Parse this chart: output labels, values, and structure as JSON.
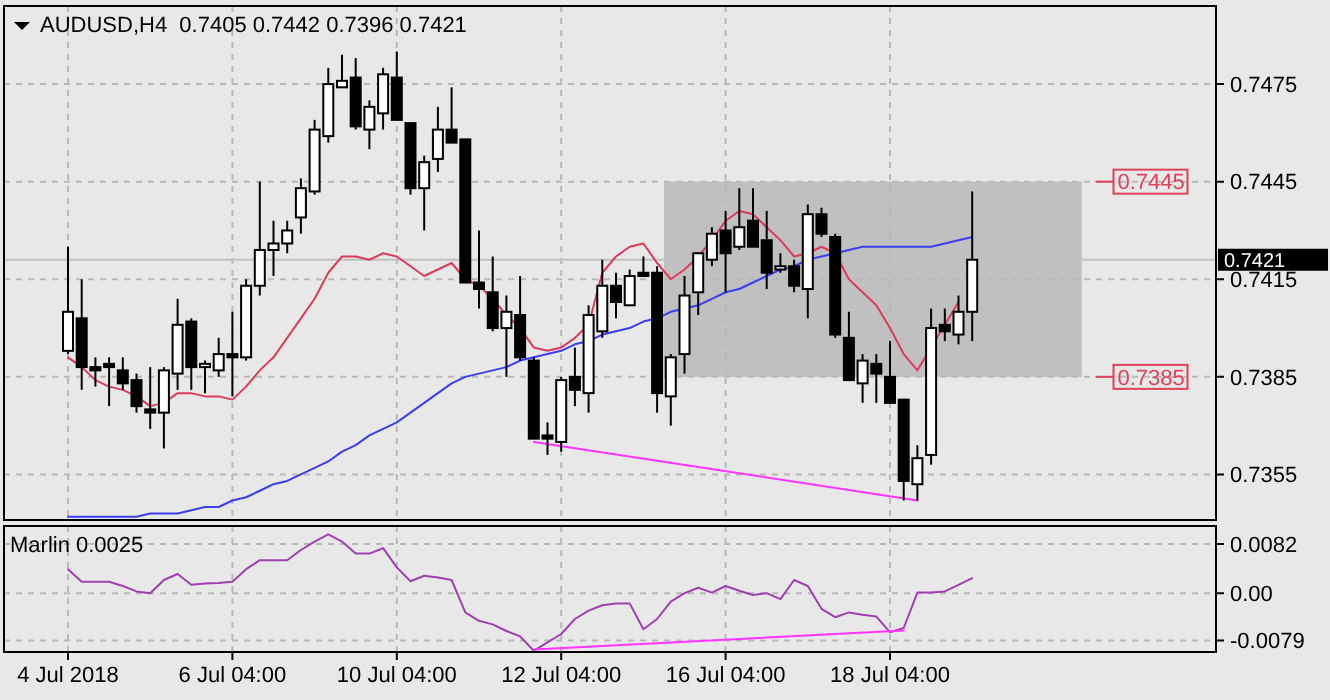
{
  "chart_data": [
    {
      "type": "candlestick",
      "title": "AUDUSD,H4  0.7405 0.7442 0.7396 0.7421",
      "categories": [
        null,
        null,
        null,
        null,
        null,
        null,
        null,
        null,
        null,
        null,
        null,
        null,
        null,
        null,
        null,
        null,
        null,
        null,
        null,
        null,
        null,
        null,
        null,
        null,
        null,
        null,
        null,
        null,
        null,
        null,
        null,
        null,
        null,
        null,
        null,
        null,
        null,
        null,
        null,
        null,
        null,
        null,
        null,
        null,
        null,
        null,
        null,
        null,
        null,
        null,
        null,
        null,
        null,
        null,
        null,
        null,
        null,
        null,
        null,
        null,
        null,
        null,
        null,
        null,
        null,
        null,
        null
      ],
      "ohlc": [
        [
          0.7393,
          0.7425,
          0.7392,
          0.7405
        ],
        [
          0.7403,
          0.7415,
          0.7381,
          0.7388
        ],
        [
          0.7388,
          0.7391,
          0.7382,
          0.7387
        ],
        [
          0.7389,
          0.7391,
          0.7376,
          0.7388
        ],
        [
          0.7387,
          0.7391,
          0.7381,
          0.7383
        ],
        [
          0.7384,
          0.7386,
          0.7374,
          0.7376
        ],
        [
          0.7375,
          0.7388,
          0.7369,
          0.7374
        ],
        [
          0.7374,
          0.7388,
          0.7363,
          0.7387
        ],
        [
          0.7386,
          0.7409,
          0.7381,
          0.7401
        ],
        [
          0.7402,
          0.7403,
          0.7381,
          0.7388
        ],
        [
          0.7388,
          0.739,
          0.738,
          0.7389
        ],
        [
          0.7387,
          0.7397,
          0.7385,
          0.7392
        ],
        [
          0.7392,
          0.7405,
          0.7379,
          0.7391
        ],
        [
          0.7391,
          0.7415,
          0.739,
          0.7413
        ],
        [
          0.7413,
          0.7445,
          0.741,
          0.7424
        ],
        [
          0.7424,
          0.7433,
          0.7416,
          0.7426
        ],
        [
          0.7426,
          0.7433,
          0.7423,
          0.743
        ],
        [
          0.7434,
          0.7446,
          0.7429,
          0.7443
        ],
        [
          0.7442,
          0.7464,
          0.7441,
          0.7461
        ],
        [
          0.7459,
          0.748,
          0.7457,
          0.7475
        ],
        [
          0.7474,
          0.7484,
          0.7474,
          0.7476
        ],
        [
          0.7477,
          0.7483,
          0.7461,
          0.7462
        ],
        [
          0.7461,
          0.747,
          0.7455,
          0.7468
        ],
        [
          0.7466,
          0.748,
          0.7461,
          0.7478
        ],
        [
          0.7477,
          0.7485,
          0.7464,
          0.7464
        ],
        [
          0.7463,
          0.7463,
          0.7441,
          0.7443
        ],
        [
          0.7443,
          0.7453,
          0.743,
          0.7451
        ],
        [
          0.7452,
          0.7468,
          0.7448,
          0.7461
        ],
        [
          0.7461,
          0.7474,
          0.7457,
          0.7457
        ],
        [
          0.7458,
          0.7458,
          0.7414,
          0.7414
        ],
        [
          0.7414,
          0.743,
          0.7406,
          0.7412
        ],
        [
          0.7411,
          0.7422,
          0.7399,
          0.74
        ],
        [
          0.74,
          0.741,
          0.7385,
          0.7405
        ],
        [
          0.7404,
          0.7416,
          0.739,
          0.7391
        ],
        [
          0.739,
          0.7391,
          0.7366,
          0.7366
        ],
        [
          0.7367,
          0.7371,
          0.7361,
          0.7366
        ],
        [
          0.7365,
          0.7385,
          0.7362,
          0.7384
        ],
        [
          0.7385,
          0.7394,
          0.7376,
          0.7381
        ],
        [
          0.738,
          0.7407,
          0.7374,
          0.7404
        ],
        [
          0.7399,
          0.7421,
          0.7397,
          0.7413
        ],
        [
          0.7413,
          0.7417,
          0.7403,
          0.7408
        ],
        [
          0.7407,
          0.7418,
          0.7407,
          0.7416
        ],
        [
          0.7417,
          0.7422,
          0.7416,
          0.7416
        ],
        [
          0.7417,
          0.7419,
          0.7374,
          0.738
        ],
        [
          0.7379,
          0.7392,
          0.737,
          0.7391
        ],
        [
          0.7392,
          0.7416,
          0.7386,
          0.741
        ],
        [
          0.7411,
          0.7423,
          0.7404,
          0.7423
        ],
        [
          0.7421,
          0.7431,
          0.7419,
          0.7429
        ],
        [
          0.743,
          0.7436,
          0.7411,
          0.7423
        ],
        [
          0.7425,
          0.7443,
          0.7424,
          0.7431
        ],
        [
          0.7433,
          0.7443,
          0.7425,
          0.7425
        ],
        [
          0.7427,
          0.7436,
          0.7412,
          0.7417
        ],
        [
          0.7418,
          0.7423,
          0.7417,
          0.7419
        ],
        [
          0.7419,
          0.7421,
          0.7411,
          0.7413
        ],
        [
          0.7412,
          0.7438,
          0.7403,
          0.7435
        ],
        [
          0.7435,
          0.7437,
          0.7428,
          0.7429
        ],
        [
          0.7428,
          0.7429,
          0.7397,
          0.7398
        ],
        [
          0.7397,
          0.7405,
          0.7384,
          0.7384
        ],
        [
          0.7383,
          0.7392,
          0.7377,
          0.739
        ],
        [
          0.7389,
          0.7392,
          0.7377,
          0.7386
        ],
        [
          0.7385,
          0.7396,
          0.7377,
          0.7377
        ],
        [
          0.7378,
          0.7378,
          0.7347,
          0.7353
        ],
        [
          0.7352,
          0.7364,
          0.7347,
          0.736
        ],
        [
          0.7361,
          0.7406,
          0.7358,
          0.74
        ],
        [
          0.7401,
          0.7406,
          0.7396,
          0.7399
        ],
        [
          0.7398,
          0.741,
          0.7395,
          0.7405
        ],
        [
          0.7405,
          0.7442,
          0.7396,
          0.7421
        ]
      ],
      "series": [
        {
          "type": "line",
          "color": "#dc3c5a",
          "values": [
            0.7391,
            0.7388,
            0.7384,
            0.7382,
            0.7381,
            0.7379,
            0.7376,
            0.7377,
            0.738,
            0.738,
            0.7379,
            0.7379,
            0.7378,
            0.7382,
            0.7387,
            0.7391,
            0.7397,
            0.7403,
            0.7409,
            0.7417,
            0.7422,
            0.7422,
            0.7421,
            0.7423,
            0.7422,
            0.7419,
            0.7416,
            0.7418,
            0.742,
            0.7415,
            0.7413,
            0.7409,
            0.7404,
            0.74,
            0.7394,
            0.7393,
            0.7394,
            0.7397,
            0.7401,
            0.7417,
            0.7422,
            0.7425,
            0.7426,
            0.742,
            0.7415,
            0.7418,
            0.7422,
            0.7427,
            0.7433,
            0.7436,
            0.7435,
            0.7431,
            0.7427,
            0.7422,
            0.7423,
            0.7425,
            0.7423,
            0.7415,
            0.7411,
            0.7407,
            0.74,
            0.7392,
            0.7387,
            null,
            0.7401,
            0.7408,
            null
          ]
        },
        {
          "type": "line",
          "color": "#3c3cf0",
          "values": [
            0.7342,
            0.7342,
            0.7342,
            0.7342,
            0.7342,
            0.7342,
            0.7343,
            0.7343,
            0.7343,
            0.7344,
            0.7345,
            0.7345,
            0.7347,
            0.7348,
            0.735,
            0.7352,
            0.7353,
            0.7355,
            0.7357,
            0.7359,
            0.7362,
            0.7364,
            0.7367,
            0.7369,
            0.7371,
            0.7374,
            0.7377,
            0.738,
            0.7383,
            0.7385,
            0.7386,
            0.7387,
            0.7388,
            0.739,
            0.7391,
            0.7392,
            0.7393,
            0.7395,
            0.7396,
            0.7398,
            0.7399,
            0.74,
            0.7402,
            0.7403,
            0.7405,
            0.7406,
            0.7407,
            0.7409,
            0.7411,
            0.7412,
            0.7414,
            0.7416,
            0.7418,
            0.7419,
            0.7421,
            0.7422,
            0.7423,
            0.7424,
            0.7425,
            0.7425,
            0.7425,
            0.7425,
            0.7425,
            0.7425,
            0.7426,
            0.7427,
            0.7428
          ]
        },
        {
          "type": "line",
          "color": "#ff33ff",
          "values": [
            null,
            null,
            null,
            null,
            null,
            null,
            null,
            null,
            null,
            null,
            null,
            null,
            null,
            null,
            null,
            null,
            null,
            null,
            null,
            null,
            null,
            null,
            null,
            null,
            null,
            null,
            null,
            null,
            null,
            null,
            null,
            null,
            null,
            null,
            0.7365,
            null,
            null,
            null,
            null,
            null,
            null,
            null,
            null,
            null,
            null,
            null,
            null,
            null,
            null,
            null,
            null,
            null,
            null,
            null,
            null,
            null,
            null,
            null,
            null,
            null,
            null,
            null,
            0.7347,
            null,
            null,
            null,
            null
          ]
        }
      ],
      "ylim": [
        0.7341,
        0.7499
      ],
      "yticks": [
        0.7475,
        0.7445,
        0.7415,
        0.7385,
        0.7355
      ],
      "grid": true,
      "tick_labels": "y",
      "bands": [
        {
          "axis": "y",
          "from": 0.7385,
          "to": 0.7445,
          "color": "#c0c0c0"
        }
      ],
      "ref_lines": [
        {
          "axis": "y",
          "value": 0.7445,
          "label": "0.7445",
          "color": "#e0405a"
        },
        {
          "axis": "y",
          "value": 0.7385,
          "label": "0.7385",
          "color": "#e0405a"
        },
        {
          "axis": "y",
          "value": 0.7421,
          "label": "0.7421",
          "color": "#c0c0c0",
          "line_style": "solid"
        }
      ]
    },
    {
      "type": "line",
      "title": "Marlin 0.0025",
      "categories": [
        "4 Jul 2018",
        null,
        null,
        null,
        null,
        null,
        null,
        null,
        null,
        null,
        null,
        null,
        "6 Jul 04:00",
        null,
        null,
        null,
        null,
        null,
        null,
        null,
        null,
        null,
        null,
        null,
        "10 Jul 04:00",
        null,
        null,
        null,
        null,
        null,
        null,
        null,
        null,
        null,
        null,
        null,
        "12 Jul 04:00",
        null,
        null,
        null,
        null,
        null,
        null,
        null,
        null,
        null,
        null,
        null,
        "16 Jul 04:00",
        null,
        null,
        null,
        null,
        null,
        null,
        null,
        null,
        null,
        null,
        null,
        "18 Jul 04:00",
        null,
        null,
        null,
        null,
        null,
        null
      ],
      "series": [
        {
          "color": "#a040b0",
          "values": [
            0.004,
            0.0019,
            0.0019,
            0.0019,
            0.0012,
            0.0003,
            0.0,
            0.0022,
            0.0032,
            0.0014,
            0.0016,
            0.0017,
            0.0019,
            0.004,
            0.0055,
            0.0055,
            0.0055,
            0.0072,
            0.0086,
            0.0098,
            0.0086,
            0.0066,
            0.0066,
            0.0075,
            0.0043,
            0.002,
            0.0029,
            0.0026,
            0.0022,
            -0.0032,
            -0.0046,
            -0.0052,
            -0.0063,
            -0.0072,
            -0.0096,
            -0.0082,
            -0.0068,
            -0.0043,
            -0.0029,
            -0.002,
            -0.0017,
            -0.0017,
            -0.006,
            -0.0043,
            -0.0014,
            0.0,
            0.0009,
            0.0001,
            0.0012,
            0.0004,
            -0.0003,
            0.0,
            -0.001,
            0.0022,
            0.0012,
            -0.0026,
            -0.004,
            -0.0032,
            -0.0036,
            -0.0039,
            -0.0065,
            -0.0058,
            0.0001,
            0.0001,
            0.0003,
            0.0014,
            0.0025
          ]
        },
        {
          "color": "#ff33ff",
          "values": [
            null,
            null,
            null,
            null,
            null,
            null,
            null,
            null,
            null,
            null,
            null,
            null,
            null,
            null,
            null,
            null,
            null,
            null,
            null,
            null,
            null,
            null,
            null,
            null,
            null,
            null,
            null,
            null,
            null,
            null,
            null,
            null,
            null,
            null,
            -0.0094,
            null,
            null,
            null,
            null,
            null,
            null,
            null,
            null,
            null,
            null,
            null,
            null,
            null,
            null,
            null,
            null,
            null,
            null,
            null,
            null,
            null,
            null,
            null,
            null,
            null,
            null,
            -0.0062,
            null,
            null,
            null,
            null,
            null
          ]
        }
      ],
      "ylim": [
        -0.0098,
        0.0112
      ],
      "yticks": [
        0.0082,
        {
          "value": 0,
          "label": "0.00"
        },
        -0.0079
      ],
      "grid": true
    }
  ]
}
